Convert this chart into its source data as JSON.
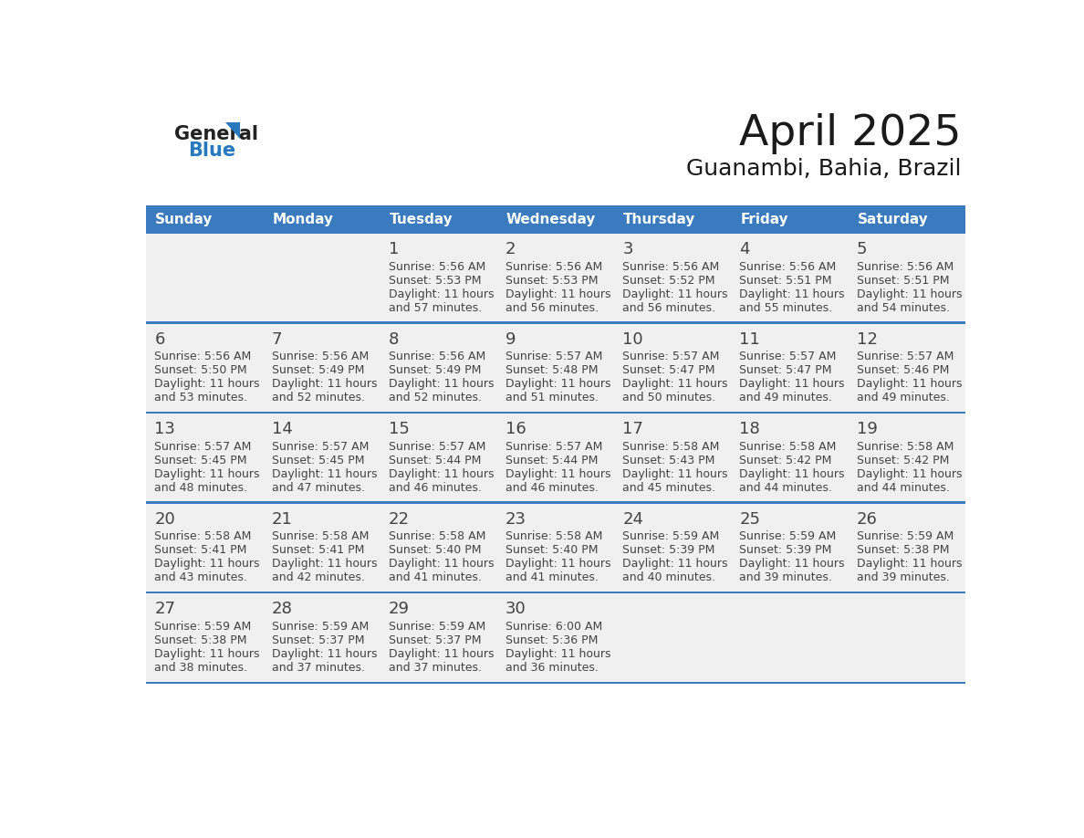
{
  "title": "April 2025",
  "subtitle": "Guanambi, Bahia, Brazil",
  "days_of_week": [
    "Sunday",
    "Monday",
    "Tuesday",
    "Wednesday",
    "Thursday",
    "Friday",
    "Saturday"
  ],
  "header_bg_color": "#3a7abf",
  "header_text_color": "#ffffff",
  "row_bg": "#f0f0f0",
  "separator_color": "#3a7abf",
  "text_color": "#444444",
  "title_color": "#1a1a1a",
  "calendar_data": [
    [
      {
        "day": "",
        "sunrise": "",
        "sunset": "",
        "daylight": ""
      },
      {
        "day": "",
        "sunrise": "",
        "sunset": "",
        "daylight": ""
      },
      {
        "day": "1",
        "sunrise": "5:56 AM",
        "sunset": "5:53 PM",
        "daylight": "11 hours and 57 minutes."
      },
      {
        "day": "2",
        "sunrise": "5:56 AM",
        "sunset": "5:53 PM",
        "daylight": "11 hours and 56 minutes."
      },
      {
        "day": "3",
        "sunrise": "5:56 AM",
        "sunset": "5:52 PM",
        "daylight": "11 hours and 56 minutes."
      },
      {
        "day": "4",
        "sunrise": "5:56 AM",
        "sunset": "5:51 PM",
        "daylight": "11 hours and 55 minutes."
      },
      {
        "day": "5",
        "sunrise": "5:56 AM",
        "sunset": "5:51 PM",
        "daylight": "11 hours and 54 minutes."
      }
    ],
    [
      {
        "day": "6",
        "sunrise": "5:56 AM",
        "sunset": "5:50 PM",
        "daylight": "11 hours and 53 minutes."
      },
      {
        "day": "7",
        "sunrise": "5:56 AM",
        "sunset": "5:49 PM",
        "daylight": "11 hours and 52 minutes."
      },
      {
        "day": "8",
        "sunrise": "5:56 AM",
        "sunset": "5:49 PM",
        "daylight": "11 hours and 52 minutes."
      },
      {
        "day": "9",
        "sunrise": "5:57 AM",
        "sunset": "5:48 PM",
        "daylight": "11 hours and 51 minutes."
      },
      {
        "day": "10",
        "sunrise": "5:57 AM",
        "sunset": "5:47 PM",
        "daylight": "11 hours and 50 minutes."
      },
      {
        "day": "11",
        "sunrise": "5:57 AM",
        "sunset": "5:47 PM",
        "daylight": "11 hours and 49 minutes."
      },
      {
        "day": "12",
        "sunrise": "5:57 AM",
        "sunset": "5:46 PM",
        "daylight": "11 hours and 49 minutes."
      }
    ],
    [
      {
        "day": "13",
        "sunrise": "5:57 AM",
        "sunset": "5:45 PM",
        "daylight": "11 hours and 48 minutes."
      },
      {
        "day": "14",
        "sunrise": "5:57 AM",
        "sunset": "5:45 PM",
        "daylight": "11 hours and 47 minutes."
      },
      {
        "day": "15",
        "sunrise": "5:57 AM",
        "sunset": "5:44 PM",
        "daylight": "11 hours and 46 minutes."
      },
      {
        "day": "16",
        "sunrise": "5:57 AM",
        "sunset": "5:44 PM",
        "daylight": "11 hours and 46 minutes."
      },
      {
        "day": "17",
        "sunrise": "5:58 AM",
        "sunset": "5:43 PM",
        "daylight": "11 hours and 45 minutes."
      },
      {
        "day": "18",
        "sunrise": "5:58 AM",
        "sunset": "5:42 PM",
        "daylight": "11 hours and 44 minutes."
      },
      {
        "day": "19",
        "sunrise": "5:58 AM",
        "sunset": "5:42 PM",
        "daylight": "11 hours and 44 minutes."
      }
    ],
    [
      {
        "day": "20",
        "sunrise": "5:58 AM",
        "sunset": "5:41 PM",
        "daylight": "11 hours and 43 minutes."
      },
      {
        "day": "21",
        "sunrise": "5:58 AM",
        "sunset": "5:41 PM",
        "daylight": "11 hours and 42 minutes."
      },
      {
        "day": "22",
        "sunrise": "5:58 AM",
        "sunset": "5:40 PM",
        "daylight": "11 hours and 41 minutes."
      },
      {
        "day": "23",
        "sunrise": "5:58 AM",
        "sunset": "5:40 PM",
        "daylight": "11 hours and 41 minutes."
      },
      {
        "day": "24",
        "sunrise": "5:59 AM",
        "sunset": "5:39 PM",
        "daylight": "11 hours and 40 minutes."
      },
      {
        "day": "25",
        "sunrise": "5:59 AM",
        "sunset": "5:39 PM",
        "daylight": "11 hours and 39 minutes."
      },
      {
        "day": "26",
        "sunrise": "5:59 AM",
        "sunset": "5:38 PM",
        "daylight": "11 hours and 39 minutes."
      }
    ],
    [
      {
        "day": "27",
        "sunrise": "5:59 AM",
        "sunset": "5:38 PM",
        "daylight": "11 hours and 38 minutes."
      },
      {
        "day": "28",
        "sunrise": "5:59 AM",
        "sunset": "5:37 PM",
        "daylight": "11 hours and 37 minutes."
      },
      {
        "day": "29",
        "sunrise": "5:59 AM",
        "sunset": "5:37 PM",
        "daylight": "11 hours and 37 minutes."
      },
      {
        "day": "30",
        "sunrise": "6:00 AM",
        "sunset": "5:36 PM",
        "daylight": "11 hours and 36 minutes."
      },
      {
        "day": "",
        "sunrise": "",
        "sunset": "",
        "daylight": ""
      },
      {
        "day": "",
        "sunrise": "",
        "sunset": "",
        "daylight": ""
      },
      {
        "day": "",
        "sunrise": "",
        "sunset": "",
        "daylight": ""
      }
    ]
  ]
}
